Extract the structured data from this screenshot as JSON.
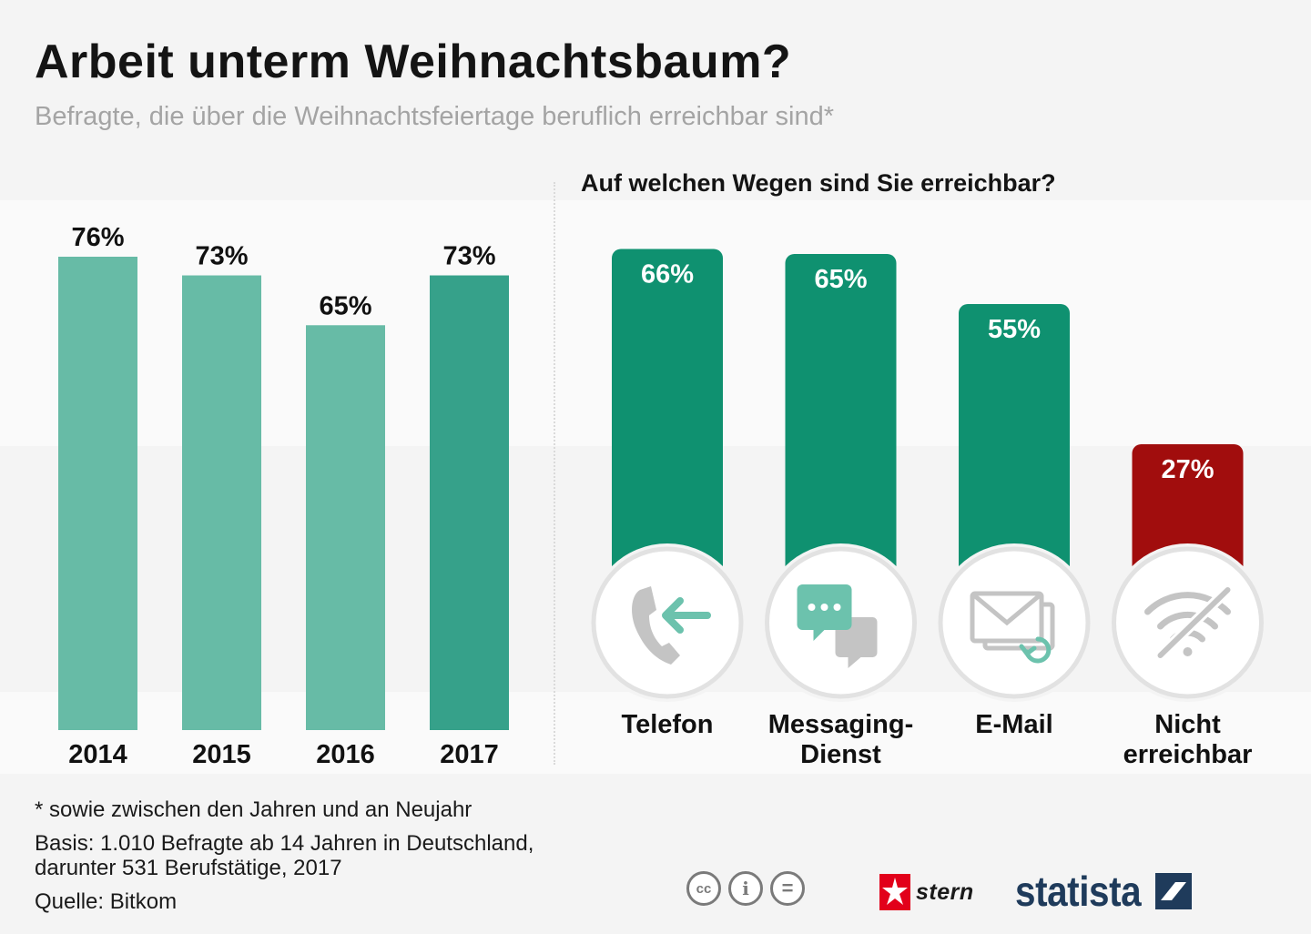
{
  "title": "Arbeit unterm Weihnachtsbaum?",
  "subtitle": "Befragte, die über die Weihnachtsfeiertage beruflich erreichbar sind*",
  "right_heading": "Auf welchen Wegen sind Sie erreichbar?",
  "colors": {
    "left_bar": "#67bba6",
    "left_bar_highlight": "#36a18a",
    "channel_bar": "#0f9170",
    "not_reachable_bar": "#a10d0d",
    "icon_green": "#6cc2ad",
    "icon_gray": "#c4c4c4"
  },
  "chart_data": [
    {
      "type": "bar",
      "title": "Befragte, die über die Weihnachtsfeiertage beruflich erreichbar sind*",
      "categories": [
        "2014",
        "2015",
        "2016",
        "2017"
      ],
      "values": [
        76,
        73,
        65,
        73
      ],
      "labels": [
        "76%",
        "73%",
        "65%",
        "73%"
      ],
      "unit": "%",
      "ylim": [
        0,
        76
      ]
    },
    {
      "type": "bar",
      "title": "Auf welchen Wegen sind Sie erreichbar?",
      "categories": [
        "Telefon",
        "Messaging-Dienst",
        "E-Mail",
        "Nicht erreichbar"
      ],
      "category_lines": [
        [
          "Telefon"
        ],
        [
          "Messaging-",
          "Dienst"
        ],
        [
          "E-Mail"
        ],
        [
          "Nicht",
          "erreichbar"
        ]
      ],
      "icons": [
        "phone-incoming-icon",
        "chat-bubbles-icon",
        "email-sync-icon",
        "wifi-off-icon"
      ],
      "values": [
        66,
        65,
        55,
        27
      ],
      "labels": [
        "66%",
        "65%",
        "55%",
        "27%"
      ],
      "unit": "%"
    }
  ],
  "footnotes": {
    "asterisk": "* sowie zwischen den Jahren und an Neujahr",
    "basis_line1": "Basis: 1.010 Befragte ab 14 Jahren in Deutschland,",
    "basis_line2": "darunter 531 Berufstätige, 2017",
    "source": "Quelle: Bitkom"
  },
  "license_icons": [
    "cc-icon",
    "attribution-icon",
    "no-derivatives-icon"
  ],
  "license_glyphs": [
    "cc",
    "i",
    "="
  ],
  "brands": {
    "stern": "stern",
    "statista": "statista"
  }
}
